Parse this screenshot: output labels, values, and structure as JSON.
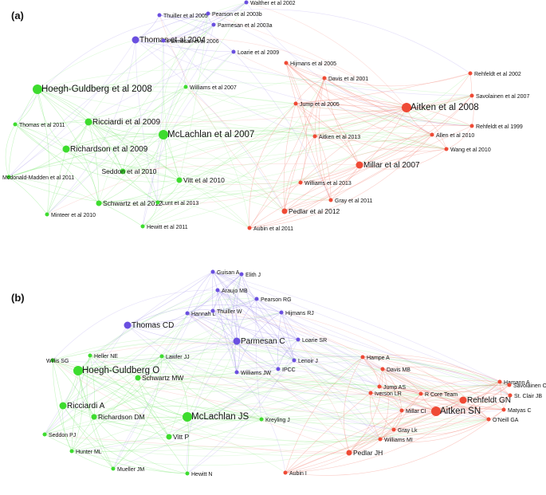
{
  "panels": [
    {
      "id": "a",
      "label": "(a)",
      "clusters": {
        "green": "#3ddc2e",
        "purple": "#6a4fe0",
        "red": "#ef4a35"
      },
      "nodes": [
        {
          "id": "walther2002",
          "label": "Walther et al 2002",
          "cluster": "purple",
          "weight": 1
        },
        {
          "id": "thuiller2005",
          "label": "Thuiller et al 2005",
          "cluster": "purple",
          "weight": 1
        },
        {
          "id": "pearson2003b",
          "label": "Pearson et al 2003b",
          "cluster": "purple",
          "weight": 1
        },
        {
          "id": "parmesan2003a",
          "label": "Parmesan et al 2003a",
          "cluster": "purple",
          "weight": 1
        },
        {
          "id": "thomas2004",
          "label": "Thomas et al 2004",
          "cluster": "purple",
          "weight": 3
        },
        {
          "id": "parmesan2006",
          "label": "Parmesan et al 2006",
          "cluster": "purple",
          "weight": 1
        },
        {
          "id": "loarie2009",
          "label": "Loarie et al 2009",
          "cluster": "purple",
          "weight": 1
        },
        {
          "id": "hoegh2008",
          "label": "Hoegh-Guldberg et al 2008",
          "cluster": "green",
          "weight": 4
        },
        {
          "id": "williams2007",
          "label": "Williams et al 2007",
          "cluster": "green",
          "weight": 1
        },
        {
          "id": "ricciardi2009",
          "label": "Ricciardi et al 2009",
          "cluster": "green",
          "weight": 3
        },
        {
          "id": "thomas2011",
          "label": "Thomas et al 2011",
          "cluster": "green",
          "weight": 1
        },
        {
          "id": "mclachlan2007",
          "label": "McLachlan et al 2007",
          "cluster": "green",
          "weight": 4
        },
        {
          "id": "richardson2009",
          "label": "Richardson et al 2009",
          "cluster": "green",
          "weight": 3
        },
        {
          "id": "mcdonald2011",
          "label": "Mcdonald-Madden et al 2011",
          "cluster": "green",
          "weight": 1
        },
        {
          "id": "seddon2010",
          "label": "Seddon et al 2010",
          "cluster": "green",
          "weight": 2
        },
        {
          "id": "vitt2010",
          "label": "Vitt et al 2010",
          "cluster": "green",
          "weight": 2
        },
        {
          "id": "schwartz2012",
          "label": "Schwartz et al 2012",
          "cluster": "green",
          "weight": 2
        },
        {
          "id": "lunt2013",
          "label": "Lunt et al 2013",
          "cluster": "green",
          "weight": 1
        },
        {
          "id": "minteer2010",
          "label": "Minteer et al 2010",
          "cluster": "green",
          "weight": 1
        },
        {
          "id": "hewitt2011",
          "label": "Hewitt et al 2011",
          "cluster": "green",
          "weight": 1
        },
        {
          "id": "hijmans2005",
          "label": "Hijmans et al 2005",
          "cluster": "red",
          "weight": 1
        },
        {
          "id": "davis2001",
          "label": "Davis et al 2001",
          "cluster": "red",
          "weight": 1
        },
        {
          "id": "rehfeldt2002",
          "label": "Rehfeldt et al 2002",
          "cluster": "red",
          "weight": 1
        },
        {
          "id": "savolainen2007",
          "label": "Savolainen et al 2007",
          "cluster": "red",
          "weight": 1
        },
        {
          "id": "jump2005",
          "label": "Jump et al 2005",
          "cluster": "red",
          "weight": 1
        },
        {
          "id": "aitken2008",
          "label": "Aitken et al 2008",
          "cluster": "red",
          "weight": 4
        },
        {
          "id": "allen2010",
          "label": "Allen et al 2010",
          "cluster": "red",
          "weight": 1
        },
        {
          "id": "rehfeldt1999",
          "label": "Rehfeldt et al 1999",
          "cluster": "red",
          "weight": 1
        },
        {
          "id": "aitken2013",
          "label": "Aitken et al 2013",
          "cluster": "red",
          "weight": 1
        },
        {
          "id": "wang2010",
          "label": "Wang et al 2010",
          "cluster": "red",
          "weight": 1
        },
        {
          "id": "millar2007",
          "label": "Millar et al 2007",
          "cluster": "red",
          "weight": 3
        },
        {
          "id": "williams2013",
          "label": "Williams et al 2013",
          "cluster": "red",
          "weight": 1
        },
        {
          "id": "gray2011",
          "label": "Gray et al 2011",
          "cluster": "red",
          "weight": 1
        },
        {
          "id": "pedlar2012",
          "label": "Pedlar et al 2012",
          "cluster": "red",
          "weight": 2
        },
        {
          "id": "aubin2011",
          "label": "Aubin et al 2011",
          "cluster": "red",
          "weight": 1
        }
      ]
    },
    {
      "id": "b",
      "label": "(b)",
      "clusters": {
        "green": "#3ddc2e",
        "purple": "#6a4fe0",
        "red": "#ef4a35"
      },
      "nodes": [
        {
          "id": "guisan",
          "label": "Guisan A",
          "cluster": "purple",
          "weight": 1
        },
        {
          "id": "elith",
          "label": "Elith J",
          "cluster": "purple",
          "weight": 1
        },
        {
          "id": "araujo",
          "label": "Araujo MB",
          "cluster": "purple",
          "weight": 1
        },
        {
          "id": "pearson",
          "label": "Pearson RG",
          "cluster": "purple",
          "weight": 1
        },
        {
          "id": "hannah",
          "label": "Hannah L",
          "cluster": "purple",
          "weight": 1
        },
        {
          "id": "thuiller",
          "label": "Thuiller W",
          "cluster": "purple",
          "weight": 1
        },
        {
          "id": "hijmans",
          "label": "Hijmans RJ",
          "cluster": "purple",
          "weight": 1
        },
        {
          "id": "thomas",
          "label": "Thomas CD",
          "cluster": "purple",
          "weight": 3
        },
        {
          "id": "parmesan",
          "label": "Parmesan C",
          "cluster": "purple",
          "weight": 3
        },
        {
          "id": "loarie",
          "label": "Loarie SR",
          "cluster": "purple",
          "weight": 1
        },
        {
          "id": "willis",
          "label": "Willis SG",
          "cluster": "green",
          "weight": 1
        },
        {
          "id": "heller",
          "label": "Heller NE",
          "cluster": "green",
          "weight": 1
        },
        {
          "id": "lawler",
          "label": "Lawler JJ",
          "cluster": "green",
          "weight": 1
        },
        {
          "id": "lenoir",
          "label": "Lenoir J",
          "cluster": "purple",
          "weight": 1
        },
        {
          "id": "ipcc",
          "label": "IPCC",
          "cluster": "purple",
          "weight": 1
        },
        {
          "id": "williamsjw",
          "label": "Williams JW",
          "cluster": "purple",
          "weight": 1
        },
        {
          "id": "hoegh",
          "label": "Hoegh-Guldberg O",
          "cluster": "green",
          "weight": 4
        },
        {
          "id": "schwartz",
          "label": "Schwartz MW",
          "cluster": "green",
          "weight": 2
        },
        {
          "id": "ricciardi",
          "label": "Ricciardi A",
          "cluster": "green",
          "weight": 3
        },
        {
          "id": "richardson",
          "label": "Richardson DM",
          "cluster": "green",
          "weight": 2
        },
        {
          "id": "mclachlan",
          "label": "McLachlan JS",
          "cluster": "green",
          "weight": 4
        },
        {
          "id": "kreyling",
          "label": "Kreyling J",
          "cluster": "green",
          "weight": 1
        },
        {
          "id": "vitt",
          "label": "Vitt P",
          "cluster": "green",
          "weight": 2
        },
        {
          "id": "seddon",
          "label": "Seddon PJ",
          "cluster": "green",
          "weight": 1
        },
        {
          "id": "hunter",
          "label": "Hunter ML",
          "cluster": "green",
          "weight": 1
        },
        {
          "id": "mueller",
          "label": "Mueller JM",
          "cluster": "green",
          "weight": 1
        },
        {
          "id": "hewitt",
          "label": "Hewitt N",
          "cluster": "green",
          "weight": 1
        },
        {
          "id": "aubin",
          "label": "Aubin I",
          "cluster": "red",
          "weight": 1
        },
        {
          "id": "hampe",
          "label": "Hampe A",
          "cluster": "red",
          "weight": 1
        },
        {
          "id": "davis",
          "label": "Davis MB",
          "cluster": "red",
          "weight": 1
        },
        {
          "id": "jump",
          "label": "Jump AS",
          "cluster": "red",
          "weight": 1
        },
        {
          "id": "iverson",
          "label": "Iverson LR",
          "cluster": "red",
          "weight": 1
        },
        {
          "id": "rcore",
          "label": "R Core Team",
          "cluster": "red",
          "weight": 1
        },
        {
          "id": "hamann",
          "label": "Hamann A",
          "cluster": "red",
          "weight": 1
        },
        {
          "id": "savolainen",
          "label": "Savolainen O",
          "cluster": "red",
          "weight": 1
        },
        {
          "id": "stclair",
          "label": "St. Clair JB",
          "cluster": "red",
          "weight": 1
        },
        {
          "id": "rehfeldt",
          "label": "Rehfeldt GN",
          "cluster": "red",
          "weight": 3
        },
        {
          "id": "matyas",
          "label": "Matyas C",
          "cluster": "red",
          "weight": 1
        },
        {
          "id": "millar",
          "label": "Millar CI",
          "cluster": "red",
          "weight": 1
        },
        {
          "id": "aitken",
          "label": "Aitken SN",
          "cluster": "red",
          "weight": 4
        },
        {
          "id": "oneill",
          "label": "O'Neill GA",
          "cluster": "red",
          "weight": 1
        },
        {
          "id": "gray",
          "label": "Gray Lk",
          "cluster": "red",
          "weight": 1
        },
        {
          "id": "williamsml",
          "label": "Williams MI",
          "cluster": "red",
          "weight": 1
        },
        {
          "id": "pedlar",
          "label": "Pedlar JH",
          "cluster": "red",
          "weight": 2
        }
      ]
    }
  ]
}
